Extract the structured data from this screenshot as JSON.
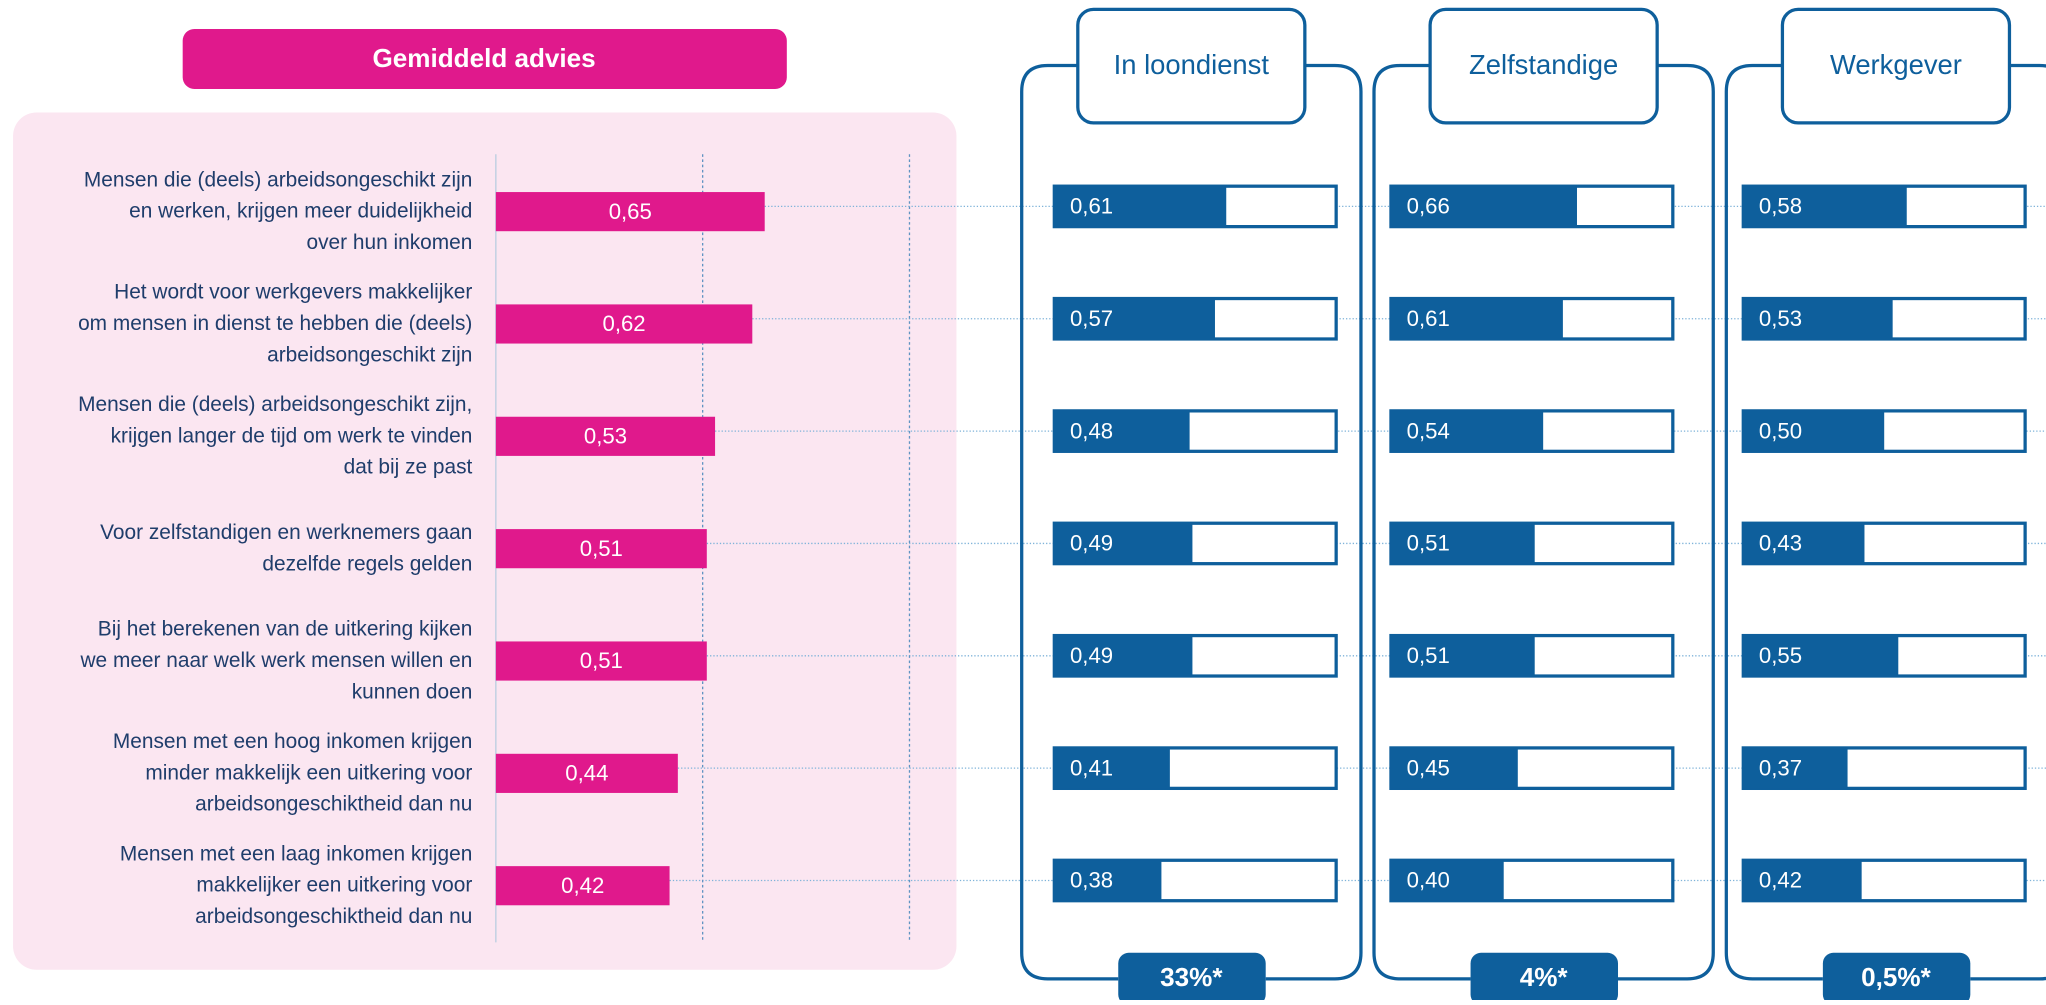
{
  "chart_data": {
    "type": "bar",
    "title": "Gemiddeld advies",
    "categories": [
      [
        "Mensen die (deels) arbeidsongeschikt zijn",
        "en werken, krijgen meer duidelijkheid",
        "over hun inkomen"
      ],
      [
        "Het wordt voor werkgevers makkelijker",
        "om mensen in dienst te hebben die (deels)",
        "arbeidsongeschikt zijn"
      ],
      [
        "Mensen die (deels) arbeidsongeschikt zijn,",
        "krijgen langer de tijd om werk te vinden",
        "dat bij ze past"
      ],
      [
        "Voor zelfstandigen en werknemers gaan",
        "dezelfde regels gelden"
      ],
      [
        "Bij het berekenen van de uitkering kijken",
        "we meer naar welk werk mensen willen en",
        "kunnen doen"
      ],
      [
        "Mensen met een hoog inkomen krijgen",
        "minder makkelijk een uitkering voor",
        "arbeidsongeschiktheid dan nu"
      ],
      [
        "Mensen met een laag inkomen krijgen",
        "makkelijker een uitkering voor",
        "arbeidsongeschiktheid dan nu"
      ]
    ],
    "values": [
      0.65,
      0.62,
      0.53,
      0.51,
      0.51,
      0.44,
      0.42
    ],
    "value_labels": [
      "0,65",
      "0,62",
      "0,53",
      "0,51",
      "0,51",
      "0,44",
      "0,42"
    ],
    "color": "#e0198c",
    "xlim": [
      0,
      1
    ],
    "xticks": [
      0,
      0.5,
      1
    ],
    "grid": true,
    "series": [
      {
        "name": "In loondienst",
        "color": "#0e5f9c",
        "share": "33%*",
        "values": [
          0.61,
          0.57,
          0.48,
          0.49,
          0.49,
          0.41,
          0.38
        ],
        "value_labels": [
          "0,61",
          "0,57",
          "0,48",
          "0,49",
          "0,49",
          "0,41",
          "0,38"
        ]
      },
      {
        "name": "Zelfstandige",
        "color": "#0e5f9c",
        "share": "4%*",
        "values": [
          0.66,
          0.61,
          0.54,
          0.51,
          0.51,
          0.45,
          0.4
        ],
        "value_labels": [
          "0,66",
          "0,61",
          "0,54",
          "0,51",
          "0,51",
          "0,45",
          "0,40"
        ]
      },
      {
        "name": "Werkgever",
        "color": "#0e5f9c",
        "share": "0,5%*",
        "values": [
          0.58,
          0.53,
          0.5,
          0.43,
          0.55,
          0.37,
          0.42
        ],
        "value_labels": [
          "0,58",
          "0,53",
          "0,50",
          "0,43",
          "0,55",
          "0,37",
          "0,42"
        ]
      }
    ]
  }
}
